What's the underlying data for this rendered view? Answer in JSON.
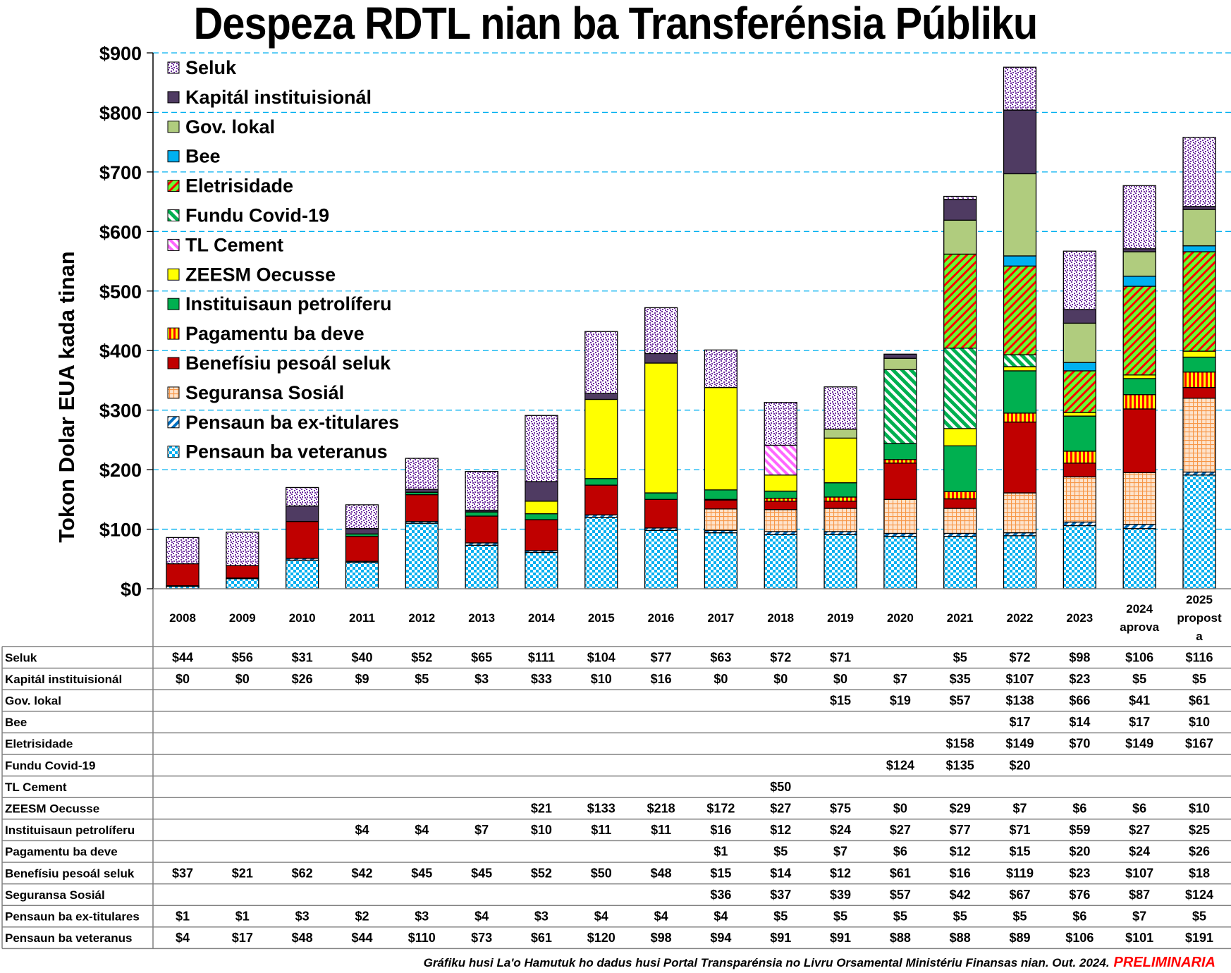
{
  "chart_data": {
    "type": "bar",
    "stacked": true,
    "title": "Despeza RDTL nian ba Transferénsia Públiku",
    "ylabel": "Tokon Dolar EUA kada tinan",
    "xlabel": "",
    "ylim": [
      0,
      900
    ],
    "yticks": [
      0,
      100,
      200,
      300,
      400,
      500,
      600,
      700,
      800,
      900
    ],
    "ytick_labels": [
      "$0",
      "$100",
      "$200",
      "$300",
      "$400",
      "$500",
      "$600",
      "$700",
      "$800",
      "$900"
    ],
    "grid": "horizontal dashed",
    "legend_position": "top-left",
    "categories": [
      "2008",
      "2009",
      "2010",
      "2011",
      "2012",
      "2013",
      "2014",
      "2015",
      "2016",
      "2017",
      "2018",
      "2019",
      "2020",
      "2021",
      "2022",
      "2023",
      "2024 aprova",
      "2025 proposta"
    ],
    "category_label_lines": [
      [
        "2008"
      ],
      [
        "2009"
      ],
      [
        "2010"
      ],
      [
        "2011"
      ],
      [
        "2012"
      ],
      [
        "2013"
      ],
      [
        "2014"
      ],
      [
        "2015"
      ],
      [
        "2016"
      ],
      [
        "2017"
      ],
      [
        "2018"
      ],
      [
        "2019"
      ],
      [
        "2020"
      ],
      [
        "2021"
      ],
      [
        "2022"
      ],
      [
        "2023"
      ],
      [
        "2024",
        "aprova"
      ],
      [
        "2025",
        "propost",
        "a"
      ]
    ],
    "series": [
      {
        "name": "Pensaun ba veteranus",
        "pattern": "checker",
        "color": "#00b0f0",
        "values": [
          4,
          17,
          48,
          44,
          110,
          73,
          61,
          120,
          98,
          94,
          91,
          91,
          88,
          88,
          89,
          106,
          101,
          191
        ]
      },
      {
        "name": "Pensaun ba ex-titulares",
        "pattern": "diag-blue",
        "color": "#0070c0",
        "values": [
          1,
          1,
          3,
          2,
          3,
          4,
          3,
          4,
          4,
          4,
          5,
          5,
          5,
          5,
          5,
          6,
          7,
          5
        ]
      },
      {
        "name": "Seguransa Sosiál",
        "pattern": "grid-orange",
        "color": "#f79646",
        "values": [
          null,
          null,
          null,
          null,
          null,
          null,
          null,
          null,
          null,
          36,
          37,
          39,
          57,
          42,
          67,
          76,
          87,
          124
        ]
      },
      {
        "name": "Benefísiu pesoál seluk",
        "pattern": "solid",
        "color": "#c00000",
        "values": [
          37,
          21,
          62,
          42,
          45,
          45,
          52,
          50,
          48,
          15,
          14,
          12,
          61,
          16,
          119,
          23,
          107,
          18
        ]
      },
      {
        "name": "Pagamentu ba deve",
        "pattern": "vstripe",
        "color": "#ffc000",
        "values": [
          null,
          null,
          null,
          null,
          null,
          null,
          null,
          null,
          null,
          1,
          5,
          7,
          6,
          12,
          15,
          20,
          24,
          26
        ]
      },
      {
        "name": "Instituisaun petrolíferu",
        "pattern": "solid",
        "color": "#00b050",
        "values": [
          null,
          null,
          null,
          4,
          4,
          7,
          10,
          11,
          11,
          16,
          12,
          24,
          27,
          77,
          71,
          59,
          27,
          25
        ]
      },
      {
        "name": "ZEESM Oecusse",
        "pattern": "solid",
        "color": "#ffff00",
        "values": [
          null,
          null,
          null,
          null,
          null,
          null,
          21,
          133,
          218,
          172,
          27,
          75,
          0,
          29,
          7,
          6,
          6,
          10
        ]
      },
      {
        "name": "TL Cement",
        "pattern": "diag-pink",
        "color": "#ff66ff",
        "values": [
          null,
          null,
          null,
          null,
          null,
          null,
          null,
          null,
          null,
          null,
          50,
          null,
          null,
          null,
          null,
          null,
          null,
          null
        ]
      },
      {
        "name": "Fundu Covid-19",
        "pattern": "diag-green",
        "color": "#00b050",
        "values": [
          null,
          null,
          null,
          null,
          null,
          null,
          null,
          null,
          null,
          null,
          null,
          null,
          124,
          135,
          20,
          null,
          null,
          null
        ]
      },
      {
        "name": "Eletrisidade",
        "pattern": "diag-redgreen",
        "color": "#66ff33",
        "values": [
          null,
          null,
          null,
          null,
          null,
          null,
          null,
          null,
          null,
          null,
          null,
          null,
          null,
          158,
          149,
          70,
          149,
          167
        ]
      },
      {
        "name": "Bee",
        "pattern": "solid",
        "color": "#00b0f0",
        "values": [
          null,
          null,
          null,
          null,
          null,
          null,
          null,
          null,
          null,
          null,
          null,
          null,
          null,
          null,
          17,
          14,
          17,
          10
        ]
      },
      {
        "name": "Gov. lokal",
        "pattern": "solid",
        "color": "#b0cc7e",
        "values": [
          null,
          null,
          null,
          null,
          null,
          null,
          null,
          null,
          null,
          null,
          null,
          15,
          19,
          57,
          138,
          66,
          41,
          61
        ]
      },
      {
        "name": "Kapitál instituisionál",
        "pattern": "solid",
        "color": "#4f3b62",
        "values": [
          0,
          0,
          26,
          9,
          5,
          3,
          33,
          10,
          16,
          0,
          0,
          0,
          7,
          35,
          107,
          23,
          5,
          5
        ]
      },
      {
        "name": "Seluk",
        "pattern": "dots-purple",
        "color": "#7030a0",
        "values": [
          44,
          56,
          31,
          40,
          52,
          65,
          111,
          104,
          77,
          63,
          72,
          71,
          null,
          5,
          72,
          98,
          106,
          116
        ]
      }
    ],
    "legend_order": [
      "Seluk",
      "Kapitál instituisionál",
      "Gov. lokal",
      "Bee",
      "Eletrisidade",
      "Fundu Covid-19",
      "TL Cement",
      "ZEESM Oecusse",
      "Instituisaun petrolíferu",
      "Pagamentu ba deve",
      "Benefísiu pesoál seluk",
      "Seguransa Sosiál",
      "Pensaun ba ex-titulares",
      "Pensaun ba veteranus"
    ],
    "table": {
      "row_order": [
        "Seluk",
        "Kapitál instituisionál",
        "Gov. lokal",
        "Bee",
        "Eletrisidade",
        "Fundu Covid-19",
        "TL Cement",
        "ZEESM Oecusse",
        "Instituisaun petrolíferu",
        "Pagamentu ba deve",
        "Benefísiu pesoál seluk",
        "Seguransa Sosiál",
        "Pensaun ba ex-titulares",
        "Pensaun ba veteranus"
      ],
      "value_prefix": "$"
    }
  },
  "footer": {
    "source": "Gráfiku husi La'o Hamutuk ho dadus husi Portal Transparénsia no Livru Orsamental Ministériu Finansas nian. Out. 2024.",
    "status": "PRELIMINARIA"
  }
}
